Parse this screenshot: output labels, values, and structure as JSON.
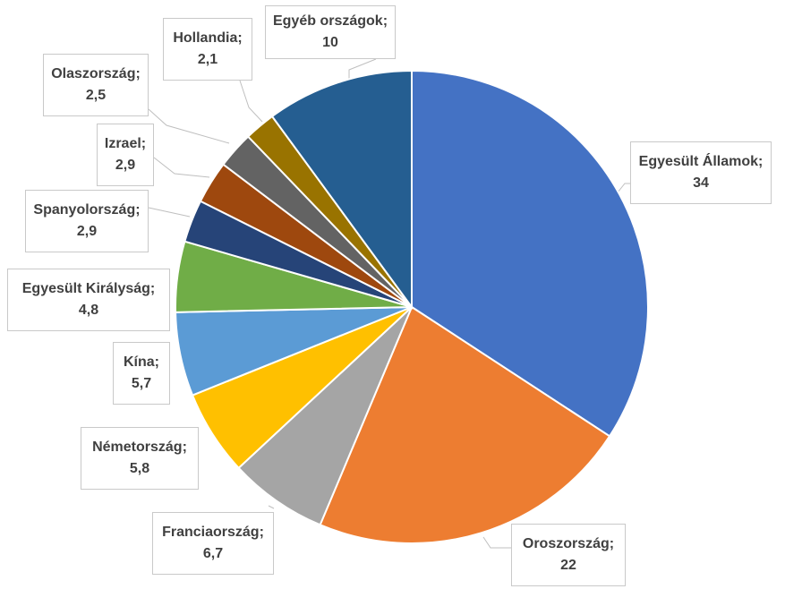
{
  "chart_data": {
    "type": "pie",
    "slices": [
      {
        "label": "Egyesült Államok",
        "value": 34,
        "value_text": "34",
        "color": "#4472C4"
      },
      {
        "label": "Oroszország",
        "value": 22,
        "value_text": "22",
        "color": "#ED7D31"
      },
      {
        "label": "Franciaország",
        "value": 6.7,
        "value_text": "6,7",
        "color": "#A5A5A5"
      },
      {
        "label": "Németország",
        "value": 5.8,
        "value_text": "5,8",
        "color": "#FFC000"
      },
      {
        "label": "Kína",
        "value": 5.7,
        "value_text": "5,7",
        "color": "#5B9BD5"
      },
      {
        "label": "Egyesült Királyság",
        "value": 4.8,
        "value_text": "4,8",
        "color": "#70AD47"
      },
      {
        "label": "Spanyolország",
        "value": 2.9,
        "value_text": "2,9",
        "color": "#264478"
      },
      {
        "label": "Izrael",
        "value": 2.9,
        "value_text": "2,9",
        "color": "#9E480E"
      },
      {
        "label": "Olaszország",
        "value": 2.5,
        "value_text": "2,5",
        "color": "#636363"
      },
      {
        "label": "Hollandia",
        "value": 2.1,
        "value_text": "2,1",
        "color": "#997300"
      },
      {
        "label": "Egyéb országok",
        "value": 10,
        "value_text": "10",
        "color": "#255E91"
      }
    ],
    "title": "",
    "legend": "none",
    "data_labels": "category; value with leader lines"
  }
}
